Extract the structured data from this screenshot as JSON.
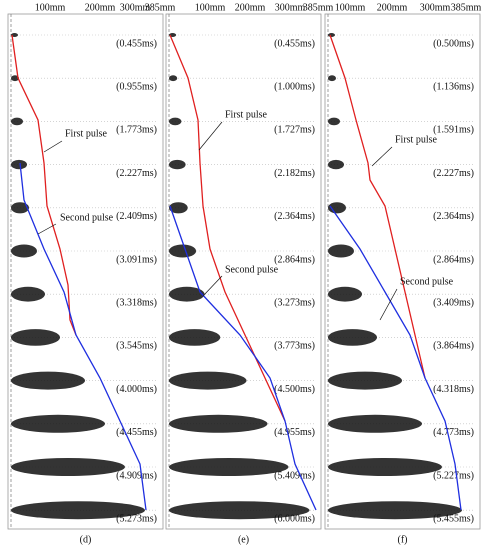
{
  "panels": [
    {
      "label": "(d)",
      "axis_labels": [
        "100mm",
        "200mm",
        "300mm",
        "385mm"
      ],
      "times": [
        "(0.455ms)",
        "(0.955ms)",
        "(1.773ms)",
        "(2.227ms)",
        "(2.409ms)",
        "(3.091ms)",
        "(3.318ms)",
        "(3.545ms)",
        "(4.000ms)",
        "(4.455ms)",
        "(4.909ms)",
        "(5.273ms)"
      ],
      "annotations": [
        "First pulse",
        "Second pulse"
      ]
    },
    {
      "label": "(e)",
      "axis_labels": [
        "100mm",
        "200mm",
        "300mm",
        "385mm"
      ],
      "times": [
        "(0.455ms)",
        "(1.000ms)",
        "(1.727ms)",
        "(2.182ms)",
        "(2.364ms)",
        "(2.864ms)",
        "(3.273ms)",
        "(3.773ms)",
        "(4.500ms)",
        "(4.955ms)",
        "(5.409ms)",
        "(6.000ms)"
      ],
      "annotations": [
        "First pulse",
        "Second pulse"
      ]
    },
    {
      "label": "(f)",
      "axis_labels": [
        "100mm",
        "200mm",
        "300mm",
        "385mm"
      ],
      "times": [
        "(0.500ms)",
        "(1.136ms)",
        "(1.591ms)",
        "(2.227ms)",
        "(2.364ms)",
        "(2.864ms)",
        "(3.409ms)",
        "(3.864ms)",
        "(4.318ms)",
        "(4.773ms)",
        "(5.227ms)",
        "(5.455ms)"
      ],
      "annotations": [
        "First pulse",
        "Second pulse"
      ]
    }
  ]
}
